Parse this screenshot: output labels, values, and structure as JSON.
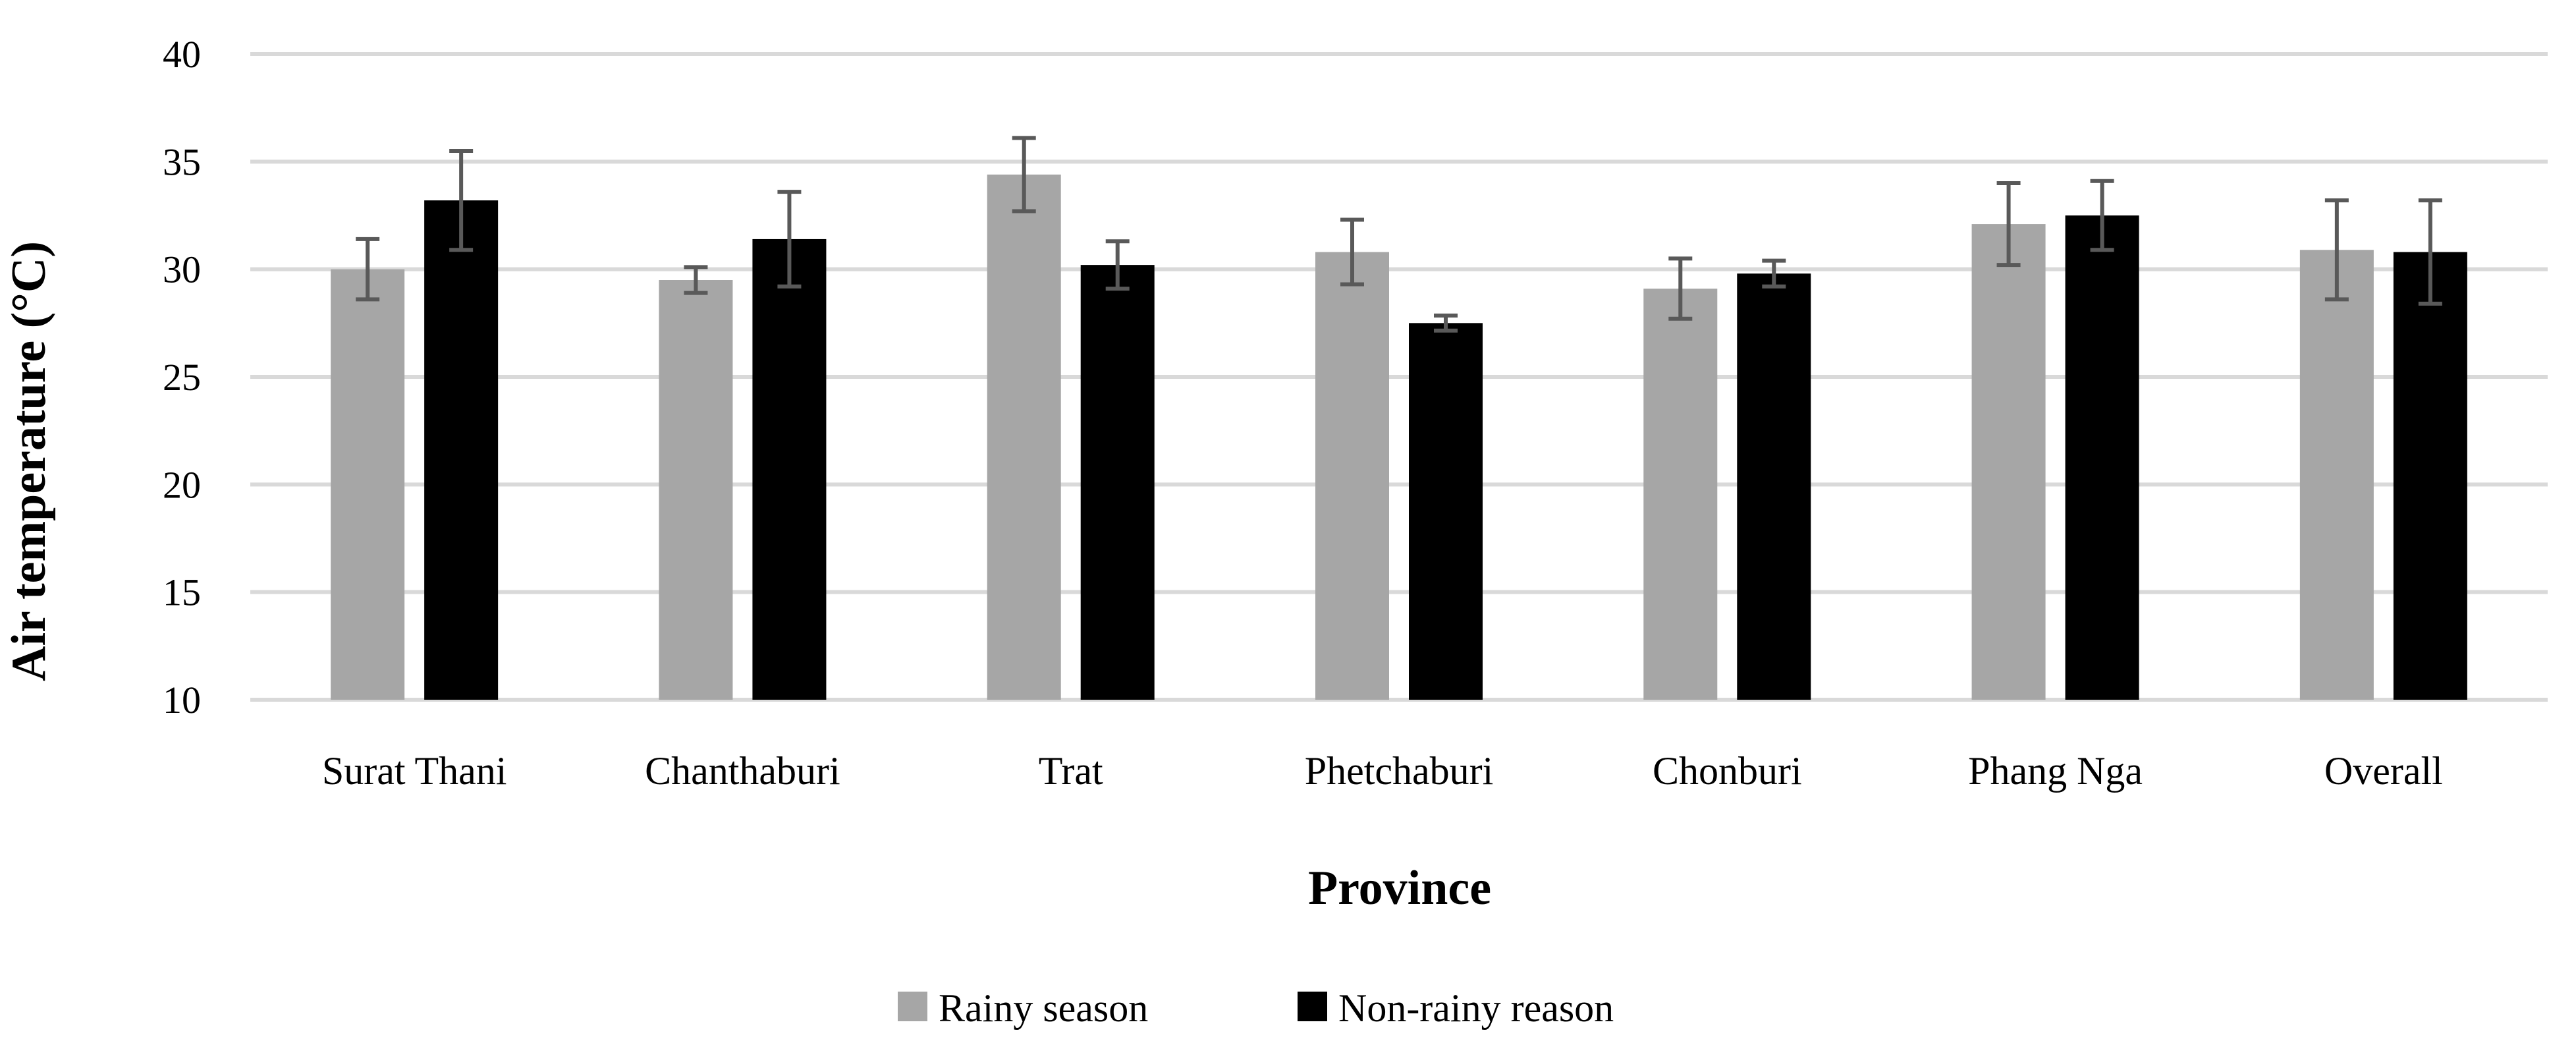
{
  "chart_data": {
    "type": "bar",
    "title": "",
    "xlabel": "Province",
    "ylabel": "Air temperature (°C)",
    "ylim": [
      10,
      40
    ],
    "yticks": [
      10,
      15,
      20,
      25,
      30,
      35,
      40
    ],
    "grid": true,
    "legend_position": "bottom",
    "categories": [
      "Surat Thani",
      "Chanthaburi",
      "Trat",
      "Phetchaburi",
      "Chonburi",
      "Phang Nga",
      "Overall"
    ],
    "series": [
      {
        "name": "Rainy season",
        "color": "#a6a6a6",
        "values": [
          30.0,
          29.5,
          34.4,
          30.8,
          29.1,
          32.1,
          30.9
        ],
        "errors": [
          1.4,
          0.6,
          1.7,
          1.5,
          1.4,
          1.9,
          2.3
        ]
      },
      {
        "name": "Non-rainy reason",
        "color": "#000000",
        "values": [
          33.2,
          31.4,
          30.2,
          27.5,
          29.8,
          32.5,
          30.8
        ],
        "errors": [
          2.3,
          2.2,
          1.1,
          0.35,
          0.6,
          1.6,
          2.4
        ]
      }
    ],
    "errorbar_color": "#595959",
    "gridline_color": "#d9d9d9"
  }
}
